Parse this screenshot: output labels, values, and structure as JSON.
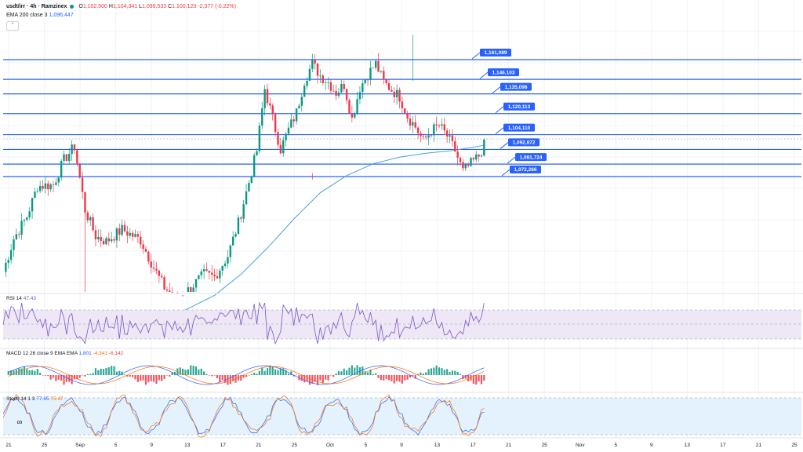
{
  "header": {
    "symbol": "usdt/irr · 4h · Ramzinex",
    "o_label": "O",
    "o_value": "1,102,500",
    "h_label": "H",
    "h_value": "1,104,341",
    "l_label": "L",
    "l_value": "1,099,533",
    "c_label": "C",
    "c_value": "1,100,123",
    "change": "-2,377 (-0.22%)",
    "ema_label": "EMA 200 close 3",
    "ema_value": "1,096,447",
    "collapse_icon": "chevron-up-icon"
  },
  "rsi_panel": {
    "name": "RSI 14",
    "value": "47.43"
  },
  "macd_panel": {
    "name": "MACD 12 26 close 9 EMA EMA",
    "v1": "1,801",
    "v2": "-4,341",
    "v3": "-6,142"
  },
  "stoch_panel": {
    "name": "Stoch 14 1 3",
    "v1": "77.65",
    "v2": "75.47"
  },
  "colors": {
    "up": "#089981",
    "down": "#f23645",
    "level": "#2962ff",
    "ema": "#4a9fd9",
    "rsi": "#7e57c2",
    "rsi_band": "#ede7f6",
    "stoch_band": "#e3f2fd"
  },
  "chart_data": {
    "type": "candlestick",
    "x_axis_labels": [
      "21",
      "25",
      "Sep",
      "5",
      "9",
      "13",
      "17",
      "21",
      "25",
      "Oct",
      "5",
      "9",
      "13",
      "17",
      "21",
      "25",
      "Nov",
      "5",
      "9",
      "13",
      "17",
      "21",
      "25"
    ],
    "horizontal_levels": [
      {
        "label": "1,161,089",
        "value": 1161089
      },
      {
        "label": "1,146,103",
        "value": 1146103
      },
      {
        "label": "1,135,096",
        "value": 1135096
      },
      {
        "label": "1,120,113",
        "value": 1120113
      },
      {
        "label": "1,104,110",
        "value": 1104110
      },
      {
        "label": "1,092,872",
        "value": 1092872
      },
      {
        "label": "1,081,724",
        "value": 1081724
      },
      {
        "label": "1,072,266",
        "value": 1072266
      }
    ],
    "price_path": [
      [
        0,
        1000000
      ],
      [
        4,
        1025000
      ],
      [
        9,
        1042000
      ],
      [
        13,
        1065000
      ],
      [
        19,
        1066000
      ],
      [
        23,
        1085000
      ],
      [
        27,
        1095000
      ],
      [
        31,
        1047000
      ],
      [
        35,
        1027000
      ],
      [
        39,
        1023000
      ],
      [
        45,
        1032000
      ],
      [
        52,
        1024000
      ],
      [
        57,
        1003000
      ],
      [
        61,
        988000
      ],
      [
        65,
        981000
      ],
      [
        69,
        984000
      ],
      [
        72,
        990000
      ],
      [
        76,
        998000
      ],
      [
        80,
        996000
      ],
      [
        85,
        1012000
      ],
      [
        89,
        1037000
      ],
      [
        93,
        1068000
      ],
      [
        96,
        1092000
      ],
      [
        99,
        1139000
      ],
      [
        102,
        1116000
      ],
      [
        105,
        1093000
      ],
      [
        108,
        1108000
      ],
      [
        111,
        1121000
      ],
      [
        114,
        1145000
      ],
      [
        117,
        1158000
      ],
      [
        120,
        1149000
      ],
      [
        123,
        1144000
      ],
      [
        126,
        1136000
      ],
      [
        129,
        1142000
      ],
      [
        132,
        1116000
      ],
      [
        135,
        1140000
      ],
      [
        138,
        1150000
      ],
      [
        141,
        1158000
      ],
      [
        144,
        1144000
      ],
      [
        147,
        1138000
      ],
      [
        150,
        1133000
      ],
      [
        153,
        1118000
      ],
      [
        156,
        1110000
      ],
      [
        159,
        1099000
      ],
      [
        162,
        1107000
      ],
      [
        165,
        1111000
      ],
      [
        168,
        1103000
      ],
      [
        171,
        1092000
      ],
      [
        174,
        1076000
      ],
      [
        177,
        1082000
      ],
      [
        180,
        1088000
      ],
      [
        182,
        1096000
      ]
    ],
    "ema_path": [
      [
        60,
        962000
      ],
      [
        70,
        972000
      ],
      [
        80,
        982000
      ],
      [
        90,
        998000
      ],
      [
        100,
        1018000
      ],
      [
        110,
        1040000
      ],
      [
        120,
        1060000
      ],
      [
        130,
        1073000
      ],
      [
        140,
        1082000
      ],
      [
        150,
        1087000
      ],
      [
        160,
        1090000
      ],
      [
        170,
        1092000
      ],
      [
        182,
        1096000
      ]
    ]
  }
}
